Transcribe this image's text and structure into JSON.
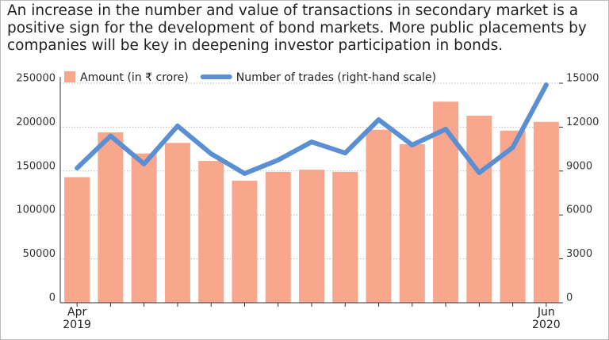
{
  "chart_data": {
    "type": "bar-line",
    "title": "An increase in the number and value of transactions in secondary market is a positive sign for the development of bond markets. More public placements by companies will be key in deepening investor participation in bonds.",
    "categories": [
      "Apr 2019",
      null,
      null,
      null,
      null,
      null,
      null,
      null,
      null,
      null,
      null,
      null,
      null,
      null,
      "Jun 2020"
    ],
    "series": [
      {
        "name": "Amount (in ₹ crore)",
        "type": "bar",
        "color": "#f8a78c",
        "values": [
          143000,
          194000,
          170000,
          182000,
          161500,
          139000,
          149000,
          151500,
          149000,
          197000,
          180500,
          229000,
          213000,
          196000,
          206000
        ]
      },
      {
        "name": "Number of trades (right-hand scale)",
        "type": "line",
        "axis": "y2",
        "color": "#5b8fd4",
        "values": [
          9200,
          11400,
          9480,
          12080,
          10180,
          8830,
          9750,
          10990,
          10230,
          12510,
          10780,
          11860,
          8880,
          10610,
          14890
        ]
      }
    ],
    "ylim": [
      0,
      250000
    ],
    "yticks": [
      0,
      50000,
      100000,
      150000,
      200000,
      250000
    ],
    "y2lim": [
      0,
      15000
    ],
    "y2ticks": [
      0,
      3000,
      6000,
      9000,
      12000,
      15000
    ],
    "grid": true
  }
}
